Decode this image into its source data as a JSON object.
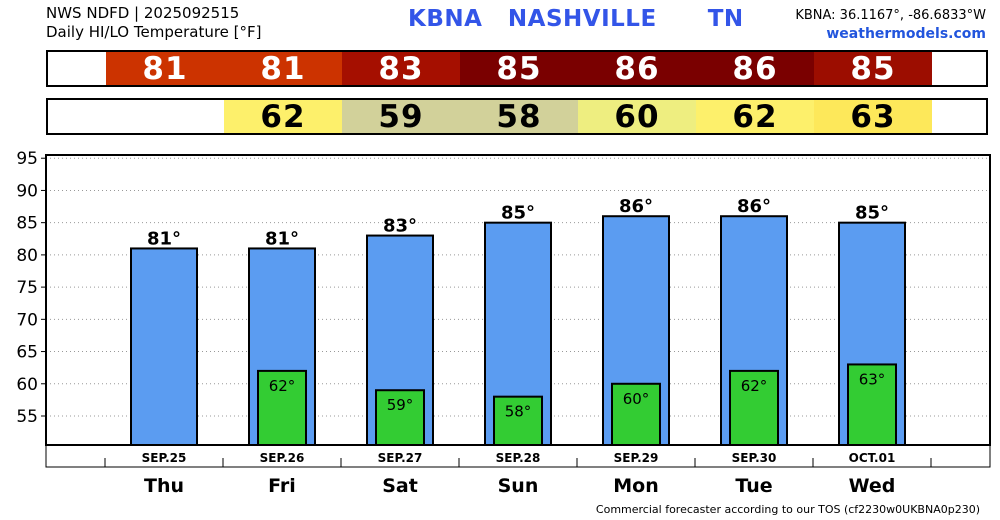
{
  "header": {
    "line1": "NWS NDFD | 2025092515",
    "line2": "Daily HI/LO Temperature [°F]",
    "title": "KBNA   NASHVILLE      TN",
    "coords": "KBNA: 36.1167°, -86.6833°W",
    "site": "weathermodels.com"
  },
  "hi_strip": [
    {
      "value": "81",
      "color": "#cc3300",
      "text_color": "#ffffff"
    },
    {
      "value": "81",
      "color": "#cc3300",
      "text_color": "#ffffff"
    },
    {
      "value": "83",
      "color": "#a50f00",
      "text_color": "#ffffff"
    },
    {
      "value": "85",
      "color": "#7a0000",
      "text_color": "#ffffff"
    },
    {
      "value": "86",
      "color": "#7a0000",
      "text_color": "#ffffff"
    },
    {
      "value": "86",
      "color": "#7a0000",
      "text_color": "#ffffff"
    },
    {
      "value": "85",
      "color": "#9c0d00",
      "text_color": "#ffffff"
    }
  ],
  "lo_strip": [
    {
      "value": "",
      "color": "#ffffff",
      "text_color": "#000000"
    },
    {
      "value": "62",
      "color": "#fdf06b",
      "text_color": "#000000"
    },
    {
      "value": "59",
      "color": "#d2d19a",
      "text_color": "#000000"
    },
    {
      "value": "58",
      "color": "#d2d19a",
      "text_color": "#000000"
    },
    {
      "value": "60",
      "color": "#eeee80",
      "text_color": "#000000"
    },
    {
      "value": "62",
      "color": "#fdf06b",
      "text_color": "#000000"
    },
    {
      "value": "63",
      "color": "#fde85a",
      "text_color": "#000000"
    }
  ],
  "chart_data": {
    "type": "bar",
    "categories": [
      "SEP.25",
      "SEP.26",
      "SEP.27",
      "SEP.28",
      "SEP.29",
      "SEP.30",
      "OCT.01"
    ],
    "days": [
      "Thu",
      "Fri",
      "Sat",
      "Sun",
      "Mon",
      "Tue",
      "Wed"
    ],
    "series": [
      {
        "values": [
          81,
          81,
          83,
          85,
          86,
          86,
          85
        ],
        "color": "#5b9cf1"
      },
      {
        "values": [
          null,
          62,
          59,
          58,
          60,
          62,
          63
        ],
        "color": "#33cc33"
      }
    ],
    "hi_labels": [
      "81°",
      "81°",
      "83°",
      "85°",
      "86°",
      "86°",
      "85°"
    ],
    "lo_labels": [
      "",
      "62°",
      "59°",
      "58°",
      "60°",
      "62°",
      "63°"
    ],
    "yticks": [
      55,
      60,
      65,
      70,
      75,
      80,
      85,
      90,
      95
    ],
    "ylim": [
      50.5,
      95.5
    ],
    "grid": true
  },
  "footer": "Commercial forecaster according to our TOS (cf2230w0UKBNA0p230)"
}
